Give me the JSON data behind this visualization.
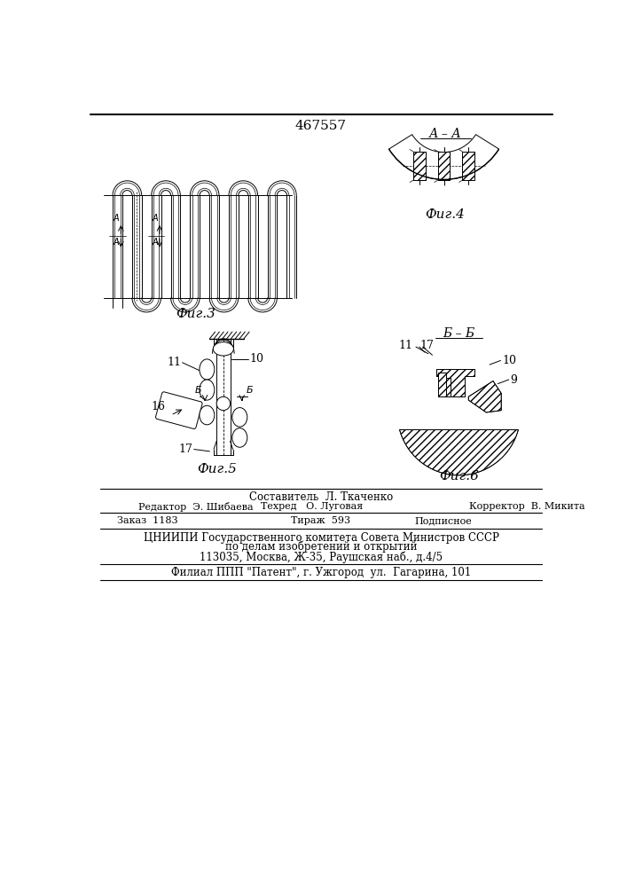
{
  "patent_number": "467557",
  "bg_color": "#ffffff",
  "fig3_caption": "Фиг.3",
  "fig4_caption": "Фиг.4",
  "fig5_caption": "Фиг.5",
  "fig6_caption": "Фиг.6",
  "section_aa": "А – А",
  "section_bb": "Б – Б",
  "footer_line1": "Составитель  Л. Ткаченко",
  "footer_line2_left": "Редактор  Э. Шибаева",
  "footer_line2_mid": "Техред   О. Луговая",
  "footer_line2_right": "Корректор  В. Микита",
  "footer_line3_left": "Заказ  1183",
  "footer_line3_mid": "Тираж  593",
  "footer_line3_right": "Подписное",
  "footer_line4": "ЦНИИПИ Государственного комитета Совета Министров СССР",
  "footer_line5": "по делам изобретений и открытий",
  "footer_line6": "113035, Москва, Ж-35, Раушская наб., д.4/5",
  "footer_line7": "Филиал ППП \"Патент\", г. Ужгород  ул.  Гагарина, 101"
}
